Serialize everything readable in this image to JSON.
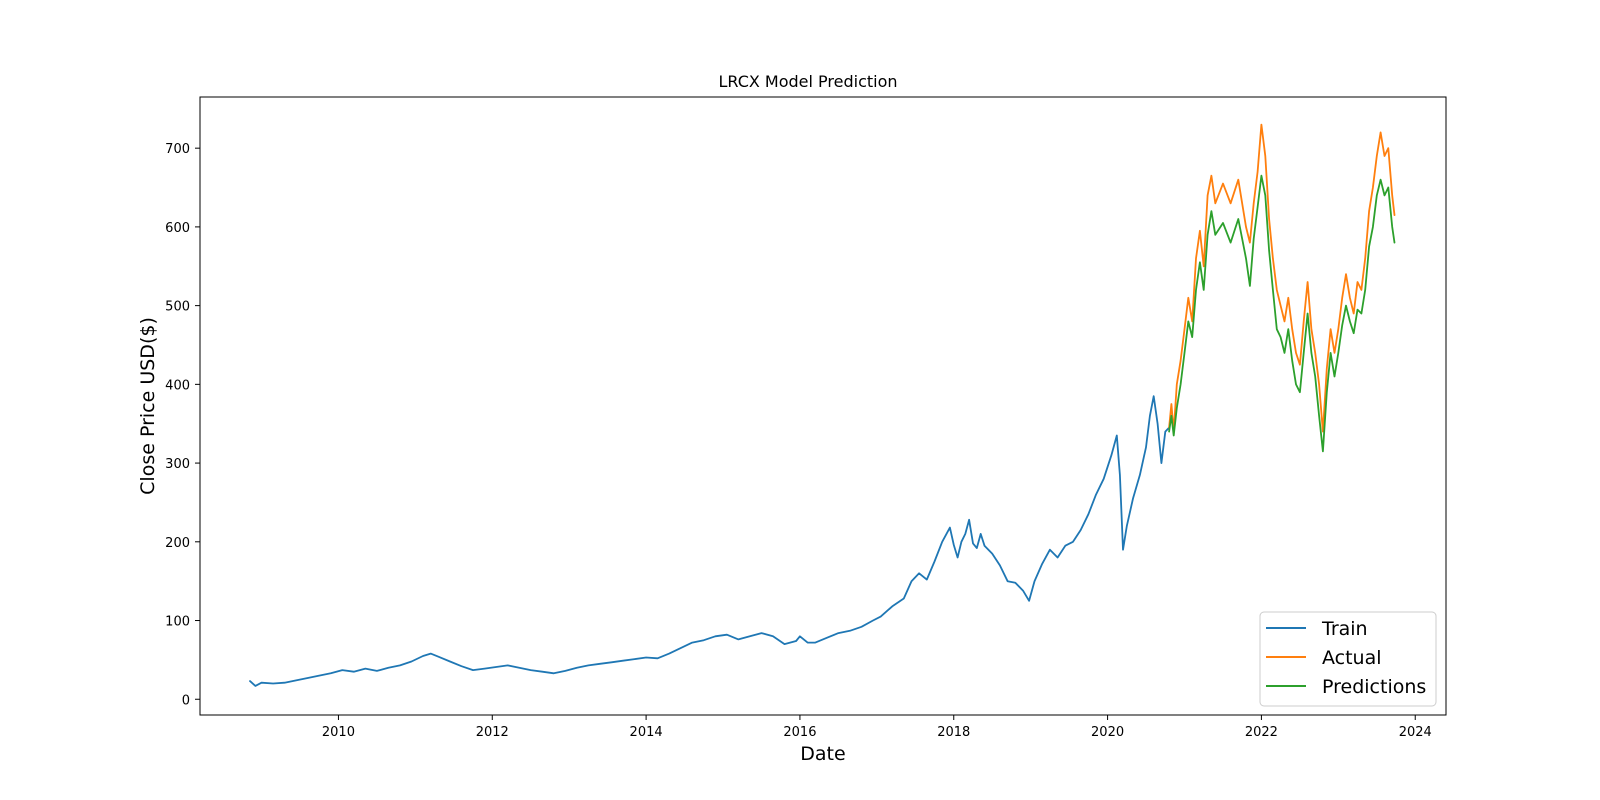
{
  "chart_data": {
    "type": "line",
    "title": "LRCX Model Prediction",
    "xlabel": "Date",
    "ylabel": "Close Price USD($)",
    "xlim": [
      2008.2,
      2024.4
    ],
    "ylim": [
      -20,
      765
    ],
    "x_ticks": [
      2010,
      2012,
      2014,
      2016,
      2018,
      2020,
      2022,
      2024
    ],
    "y_ticks": [
      0,
      100,
      200,
      300,
      400,
      500,
      600,
      700
    ],
    "grid": false,
    "legend_position": "bottom-right",
    "colors": {
      "train": "#1f77b4",
      "actual": "#ff7f0e",
      "predictions": "#2ca02c"
    },
    "series": [
      {
        "name": "Train",
        "color": "#1f77b4",
        "points": [
          [
            2008.85,
            23
          ],
          [
            2008.92,
            17
          ],
          [
            2009.0,
            21
          ],
          [
            2009.15,
            20
          ],
          [
            2009.3,
            21
          ],
          [
            2009.45,
            24
          ],
          [
            2009.6,
            27
          ],
          [
            2009.75,
            30
          ],
          [
            2009.9,
            33
          ],
          [
            2010.05,
            37
          ],
          [
            2010.2,
            35
          ],
          [
            2010.35,
            39
          ],
          [
            2010.5,
            36
          ],
          [
            2010.65,
            40
          ],
          [
            2010.8,
            43
          ],
          [
            2010.95,
            48
          ],
          [
            2011.1,
            55
          ],
          [
            2011.2,
            58
          ],
          [
            2011.3,
            54
          ],
          [
            2011.45,
            48
          ],
          [
            2011.6,
            42
          ],
          [
            2011.75,
            37
          ],
          [
            2011.9,
            39
          ],
          [
            2012.05,
            41
          ],
          [
            2012.2,
            43
          ],
          [
            2012.35,
            40
          ],
          [
            2012.5,
            37
          ],
          [
            2012.65,
            35
          ],
          [
            2012.8,
            33
          ],
          [
            2012.95,
            36
          ],
          [
            2013.1,
            40
          ],
          [
            2013.25,
            43
          ],
          [
            2013.4,
            45
          ],
          [
            2013.55,
            47
          ],
          [
            2013.7,
            49
          ],
          [
            2013.85,
            51
          ],
          [
            2014.0,
            53
          ],
          [
            2014.15,
            52
          ],
          [
            2014.3,
            58
          ],
          [
            2014.45,
            65
          ],
          [
            2014.6,
            72
          ],
          [
            2014.75,
            75
          ],
          [
            2014.9,
            80
          ],
          [
            2015.05,
            82
          ],
          [
            2015.2,
            76
          ],
          [
            2015.35,
            80
          ],
          [
            2015.5,
            84
          ],
          [
            2015.65,
            80
          ],
          [
            2015.8,
            70
          ],
          [
            2015.95,
            74
          ],
          [
            2016.0,
            80
          ],
          [
            2016.1,
            72
          ],
          [
            2016.2,
            72
          ],
          [
            2016.35,
            78
          ],
          [
            2016.5,
            84
          ],
          [
            2016.65,
            87
          ],
          [
            2016.8,
            92
          ],
          [
            2016.95,
            100
          ],
          [
            2017.05,
            105
          ],
          [
            2017.2,
            118
          ],
          [
            2017.35,
            128
          ],
          [
            2017.45,
            150
          ],
          [
            2017.55,
            160
          ],
          [
            2017.65,
            152
          ],
          [
            2017.75,
            175
          ],
          [
            2017.85,
            200
          ],
          [
            2017.95,
            218
          ],
          [
            2018.0,
            196
          ],
          [
            2018.05,
            180
          ],
          [
            2018.1,
            200
          ],
          [
            2018.15,
            210
          ],
          [
            2018.2,
            228
          ],
          [
            2018.25,
            198
          ],
          [
            2018.3,
            192
          ],
          [
            2018.35,
            210
          ],
          [
            2018.4,
            195
          ],
          [
            2018.5,
            185
          ],
          [
            2018.6,
            170
          ],
          [
            2018.7,
            150
          ],
          [
            2018.8,
            148
          ],
          [
            2018.9,
            138
          ],
          [
            2018.98,
            125
          ],
          [
            2019.05,
            150
          ],
          [
            2019.15,
            172
          ],
          [
            2019.25,
            190
          ],
          [
            2019.35,
            180
          ],
          [
            2019.45,
            195
          ],
          [
            2019.55,
            200
          ],
          [
            2019.65,
            215
          ],
          [
            2019.75,
            235
          ],
          [
            2019.85,
            260
          ],
          [
            2019.95,
            280
          ],
          [
            2020.05,
            310
          ],
          [
            2020.12,
            335
          ],
          [
            2020.16,
            285
          ],
          [
            2020.2,
            190
          ],
          [
            2020.25,
            220
          ],
          [
            2020.33,
            255
          ],
          [
            2020.42,
            285
          ],
          [
            2020.5,
            320
          ],
          [
            2020.55,
            360
          ],
          [
            2020.6,
            385
          ],
          [
            2020.65,
            350
          ],
          [
            2020.7,
            300
          ],
          [
            2020.75,
            340
          ],
          [
            2020.8,
            345
          ]
        ]
      },
      {
        "name": "Actual",
        "color": "#ff7f0e",
        "points": [
          [
            2020.8,
            345
          ],
          [
            2020.83,
            375
          ],
          [
            2020.86,
            340
          ],
          [
            2020.9,
            400
          ],
          [
            2020.95,
            430
          ],
          [
            2021.0,
            470
          ],
          [
            2021.05,
            510
          ],
          [
            2021.1,
            480
          ],
          [
            2021.15,
            560
          ],
          [
            2021.2,
            595
          ],
          [
            2021.25,
            550
          ],
          [
            2021.3,
            640
          ],
          [
            2021.35,
            665
          ],
          [
            2021.4,
            630
          ],
          [
            2021.5,
            655
          ],
          [
            2021.6,
            630
          ],
          [
            2021.7,
            660
          ],
          [
            2021.8,
            600
          ],
          [
            2021.85,
            580
          ],
          [
            2021.9,
            630
          ],
          [
            2021.95,
            670
          ],
          [
            2022.0,
            730
          ],
          [
            2022.05,
            690
          ],
          [
            2022.1,
            610
          ],
          [
            2022.15,
            560
          ],
          [
            2022.2,
            520
          ],
          [
            2022.25,
            500
          ],
          [
            2022.3,
            480
          ],
          [
            2022.35,
            510
          ],
          [
            2022.4,
            470
          ],
          [
            2022.45,
            440
          ],
          [
            2022.5,
            425
          ],
          [
            2022.55,
            480
          ],
          [
            2022.6,
            530
          ],
          [
            2022.65,
            470
          ],
          [
            2022.7,
            440
          ],
          [
            2022.75,
            400
          ],
          [
            2022.8,
            340
          ],
          [
            2022.85,
            420
          ],
          [
            2022.9,
            470
          ],
          [
            2022.95,
            440
          ],
          [
            2023.0,
            470
          ],
          [
            2023.05,
            510
          ],
          [
            2023.1,
            540
          ],
          [
            2023.15,
            510
          ],
          [
            2023.2,
            490
          ],
          [
            2023.25,
            530
          ],
          [
            2023.3,
            520
          ],
          [
            2023.35,
            560
          ],
          [
            2023.4,
            620
          ],
          [
            2023.45,
            650
          ],
          [
            2023.5,
            690
          ],
          [
            2023.55,
            720
          ],
          [
            2023.6,
            690
          ],
          [
            2023.65,
            700
          ],
          [
            2023.7,
            640
          ],
          [
            2023.73,
            615
          ]
        ]
      },
      {
        "name": "Predictions",
        "color": "#2ca02c",
        "points": [
          [
            2020.8,
            340
          ],
          [
            2020.83,
            360
          ],
          [
            2020.86,
            335
          ],
          [
            2020.9,
            370
          ],
          [
            2020.95,
            400
          ],
          [
            2021.0,
            440
          ],
          [
            2021.05,
            480
          ],
          [
            2021.1,
            460
          ],
          [
            2021.15,
            520
          ],
          [
            2021.2,
            555
          ],
          [
            2021.25,
            520
          ],
          [
            2021.3,
            590
          ],
          [
            2021.35,
            620
          ],
          [
            2021.4,
            590
          ],
          [
            2021.5,
            605
          ],
          [
            2021.6,
            580
          ],
          [
            2021.7,
            610
          ],
          [
            2021.8,
            560
          ],
          [
            2021.85,
            525
          ],
          [
            2021.9,
            585
          ],
          [
            2021.95,
            625
          ],
          [
            2022.0,
            665
          ],
          [
            2022.05,
            640
          ],
          [
            2022.1,
            570
          ],
          [
            2022.15,
            520
          ],
          [
            2022.2,
            470
          ],
          [
            2022.25,
            460
          ],
          [
            2022.3,
            440
          ],
          [
            2022.35,
            470
          ],
          [
            2022.4,
            430
          ],
          [
            2022.45,
            400
          ],
          [
            2022.5,
            390
          ],
          [
            2022.55,
            440
          ],
          [
            2022.6,
            490
          ],
          [
            2022.65,
            440
          ],
          [
            2022.7,
            410
          ],
          [
            2022.75,
            360
          ],
          [
            2022.8,
            315
          ],
          [
            2022.85,
            390
          ],
          [
            2022.9,
            440
          ],
          [
            2022.95,
            410
          ],
          [
            2023.0,
            440
          ],
          [
            2023.05,
            475
          ],
          [
            2023.1,
            500
          ],
          [
            2023.15,
            480
          ],
          [
            2023.2,
            465
          ],
          [
            2023.25,
            495
          ],
          [
            2023.3,
            490
          ],
          [
            2023.35,
            520
          ],
          [
            2023.4,
            575
          ],
          [
            2023.45,
            600
          ],
          [
            2023.5,
            640
          ],
          [
            2023.55,
            660
          ],
          [
            2023.6,
            640
          ],
          [
            2023.65,
            650
          ],
          [
            2023.7,
            600
          ],
          [
            2023.73,
            580
          ]
        ]
      }
    ]
  }
}
